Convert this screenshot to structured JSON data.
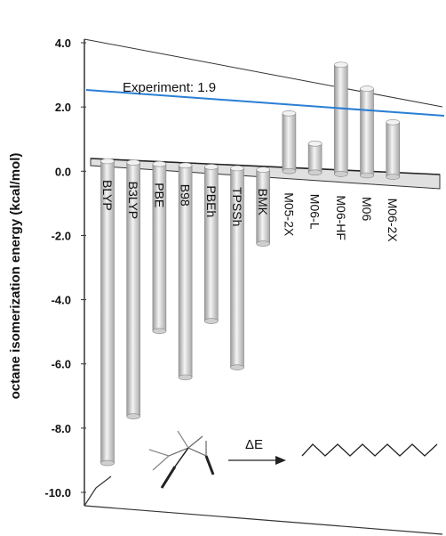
{
  "chart_data": {
    "type": "bar",
    "title": "",
    "ylabel": "octane isomerization energy (kcal/mol)",
    "ylim": [
      -10.0,
      4.0
    ],
    "yticks": [
      "4.0",
      "2.0",
      "0.0",
      "-2.0",
      "-4.0",
      "-6.0",
      "-8.0",
      "-10.0"
    ],
    "categories": [
      "BLYP",
      "B3LYP",
      "PBE",
      "B98",
      "PBEh",
      "TPSSh",
      "BMK",
      "M05-2X",
      "M06-L",
      "M06-HF",
      "M06",
      "M06-2X"
    ],
    "values": [
      -9.4,
      -7.9,
      -5.2,
      -6.6,
      -4.8,
      -6.2,
      -2.3,
      1.8,
      0.9,
      3.4,
      2.7,
      1.7
    ],
    "reference_line": {
      "label": "Experiment: 1.9",
      "value": 1.9,
      "color": "#2a7fd4"
    },
    "inset": {
      "label": "ΔE",
      "description_free": true
    },
    "grid": false
  }
}
